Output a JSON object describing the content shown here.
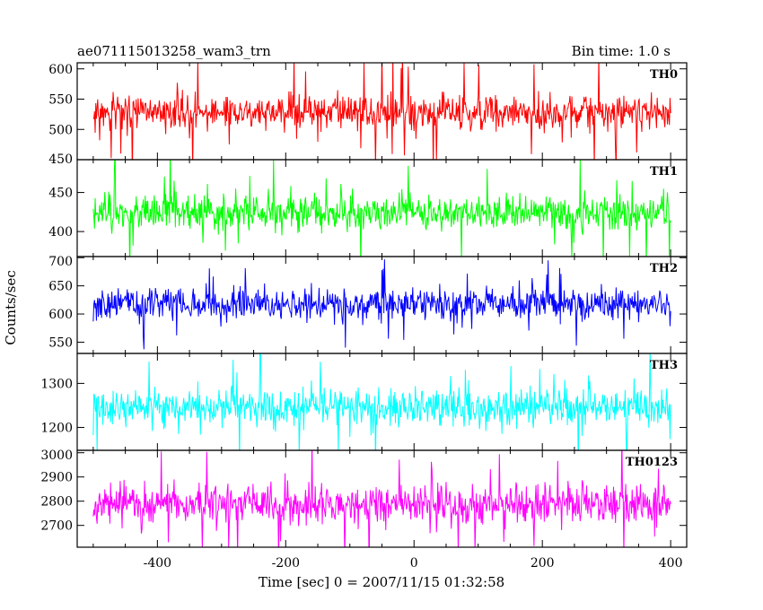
{
  "header": {
    "title": "ae071115013258_wam3_trn",
    "bin_time": "Bin time: 1.0 s"
  },
  "chart_data": {
    "type": "line",
    "title": "ae071115013258_wam3_trn",
    "subtitle": "Bin time: 1.0 s",
    "xlabel": "Time [sec] 0 = 2007/11/15 01:32:58",
    "ylabel": "Counts/sec",
    "xlim": [
      -525,
      425
    ],
    "x_range": [
      -500,
      400
    ],
    "x_ticks": [
      -400,
      -200,
      0,
      200,
      400
    ],
    "bin_time_s": 1.0,
    "grid": false,
    "legend": "none",
    "series": [
      {
        "name": "TH0",
        "color": "#ff0000",
        "ylim": [
          450,
          610
        ],
        "y_ticks": [
          450,
          500,
          550,
          600
        ],
        "mean": 528,
        "half_range": 65,
        "noise": 16,
        "seed": 11
      },
      {
        "name": "TH1",
        "color": "#00ff00",
        "ylim": [
          368,
          492
        ],
        "y_ticks": [
          400,
          450
        ],
        "mean": 425,
        "half_range": 52,
        "noise": 14,
        "seed": 23
      },
      {
        "name": "TH2",
        "color": "#0000ff",
        "ylim": [
          530,
          702
        ],
        "y_ticks": [
          550,
          600,
          650,
          700
        ],
        "mean": 618,
        "half_range": 60,
        "noise": 17,
        "seed": 37
      },
      {
        "name": "TH3",
        "color": "#00ffff",
        "ylim": [
          1148,
          1368
        ],
        "y_ticks": [
          1200,
          1300
        ],
        "mean": 1245,
        "half_range": 85,
        "noise": 24,
        "seed": 41
      },
      {
        "name": "TH0123",
        "color": "#ff00ff",
        "ylim": [
          2610,
          3010
        ],
        "y_ticks": [
          2700,
          2800,
          2900,
          3000
        ],
        "mean": 2790,
        "half_range": 170,
        "noise": 48,
        "seed": 53
      }
    ]
  }
}
